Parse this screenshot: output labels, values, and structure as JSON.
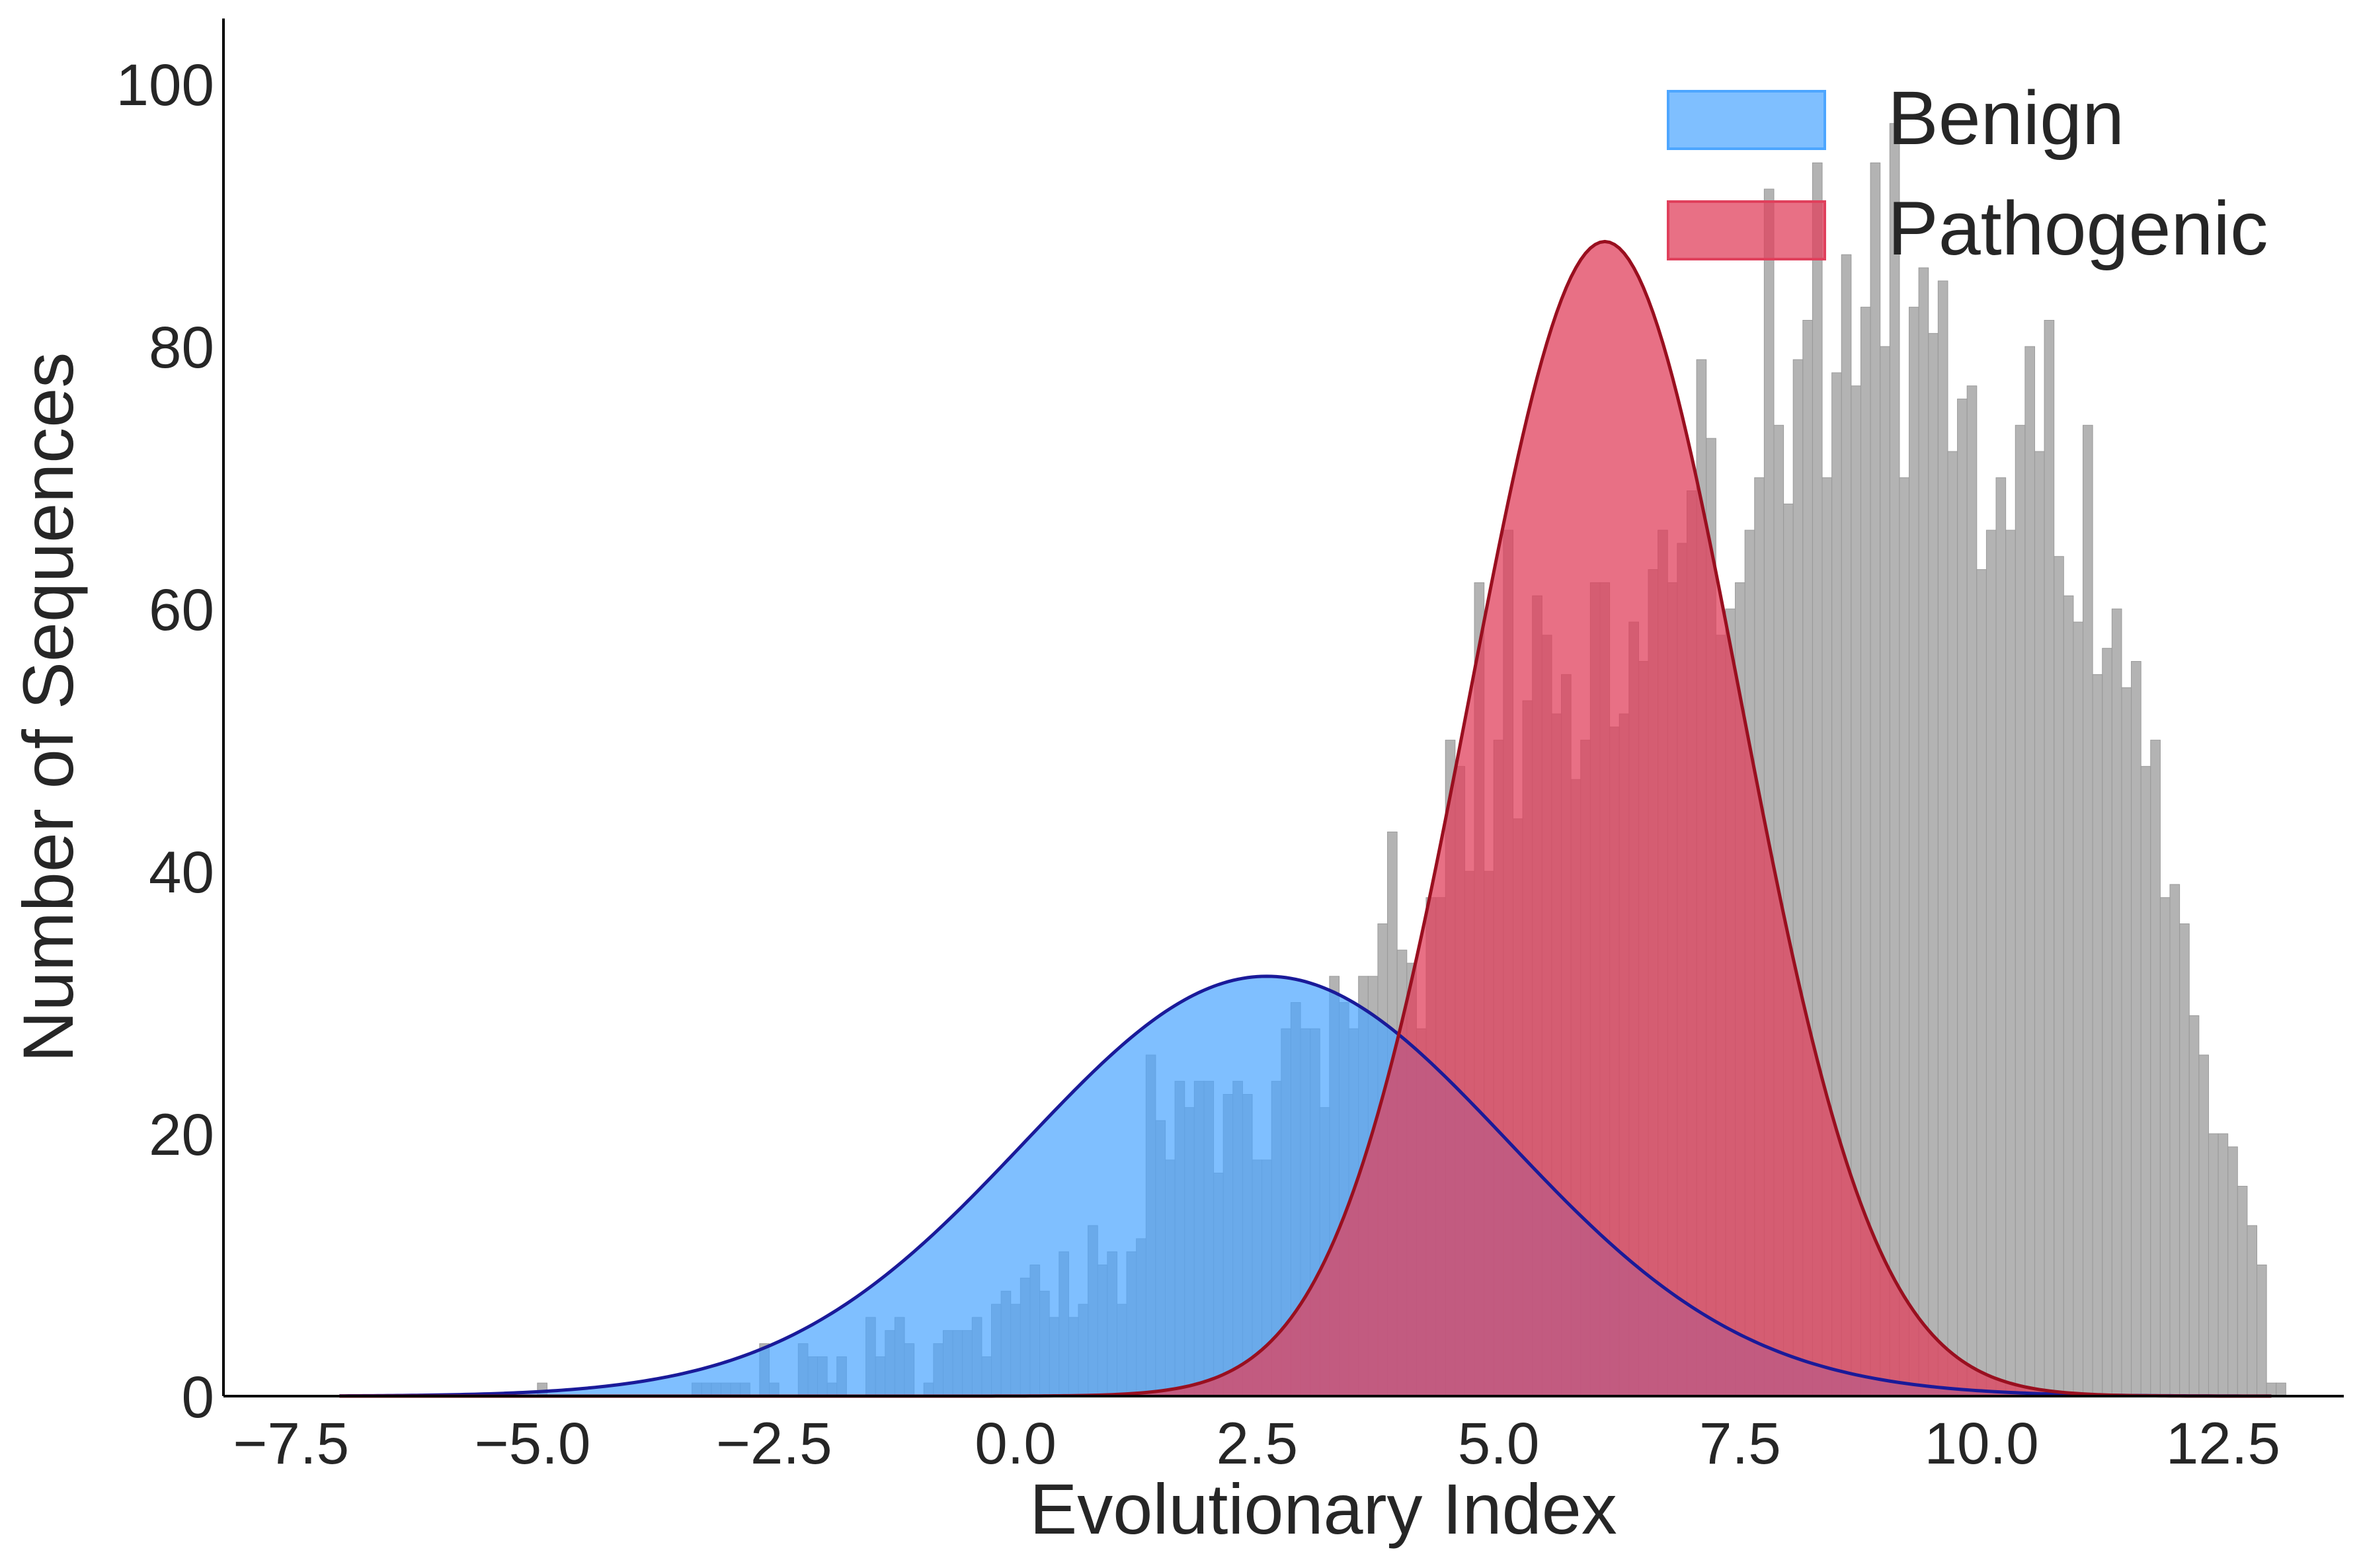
{
  "chart_data": {
    "type": "bar",
    "subtype": "histogram-with-gaussian-fits",
    "title": "",
    "xlabel": "Evolutionary Index",
    "ylabel": "Number of Sequences",
    "xlim": [
      -8.2,
      13.75
    ],
    "ylim": [
      0,
      105
    ],
    "x_ticks": [
      -7.5,
      -5.0,
      -2.5,
      0.0,
      2.5,
      5.0,
      7.5,
      10.0,
      12.5
    ],
    "x_tick_labels": [
      "−7.5",
      "−5.0",
      "−2.5",
      "0.0",
      "2.5",
      "5.0",
      "7.5",
      "10.0",
      "12.5"
    ],
    "y_ticks": [
      0,
      20,
      40,
      60,
      80,
      100
    ],
    "y_tick_labels": [
      "0",
      "20",
      "40",
      "60",
      "80",
      "100"
    ],
    "grid": false,
    "legend_position": "top-right",
    "colors": {
      "total_histogram": "#a6a6a6",
      "benign_fill": "#4da6ff",
      "benign_line": "#1a1a99",
      "pathogenic_fill": "#e0405c",
      "pathogenic_line": "#990f1f",
      "axis": "#000000",
      "text": "#262626"
    },
    "histogram": {
      "series_note": "",
      "bin_width": 0.1,
      "x_start": -4.95,
      "counts": [
        1,
        0,
        0,
        0,
        0,
        0,
        0,
        0,
        0,
        0,
        0,
        0,
        0,
        0,
        0,
        0,
        1,
        1,
        1,
        1,
        1,
        1,
        0,
        4,
        1,
        0,
        0,
        4,
        3,
        3,
        1,
        3,
        0,
        0,
        6,
        3,
        5,
        6,
        4,
        0,
        1,
        4,
        5,
        5,
        5,
        6,
        3,
        7,
        8,
        7,
        9,
        10,
        8,
        6,
        11,
        6,
        7,
        13,
        10,
        11,
        7,
        11,
        12,
        26,
        21,
        18,
        24,
        22,
        24,
        24,
        17,
        23,
        24,
        23,
        18,
        18,
        24,
        28,
        30,
        28,
        28,
        22,
        32,
        30,
        28,
        32,
        32,
        36,
        43,
        34,
        33,
        28,
        38,
        38,
        50,
        48,
        40,
        62,
        40,
        50,
        66,
        44,
        53,
        61,
        58,
        52,
        55,
        47,
        50,
        62,
        62,
        51,
        52,
        59,
        56,
        63,
        66,
        62,
        65,
        69,
        79,
        73,
        58,
        60,
        62,
        66,
        70,
        92,
        74,
        68,
        79,
        82,
        94,
        70,
        78,
        87,
        77,
        83,
        94,
        80,
        97,
        70,
        83,
        86,
        81,
        85,
        72,
        76,
        77,
        63,
        66,
        70,
        66,
        74,
        80,
        72,
        82,
        64,
        61,
        59,
        74,
        55,
        57,
        60,
        54,
        56,
        48,
        50,
        38,
        39,
        36,
        29,
        26,
        20,
        20,
        19,
        16,
        13,
        10,
        1,
        1,
        0,
        0
      ]
    },
    "series": [
      {
        "name": "Benign",
        "distribution": "gaussian",
        "mean": 2.6,
        "std": 2.5,
        "peak": 32
      },
      {
        "name": "Pathogenic",
        "distribution": "gaussian",
        "mean": 6.1,
        "std": 1.4,
        "peak": 88
      }
    ],
    "curve_x_range": [
      -7.0,
      13.0
    ]
  }
}
